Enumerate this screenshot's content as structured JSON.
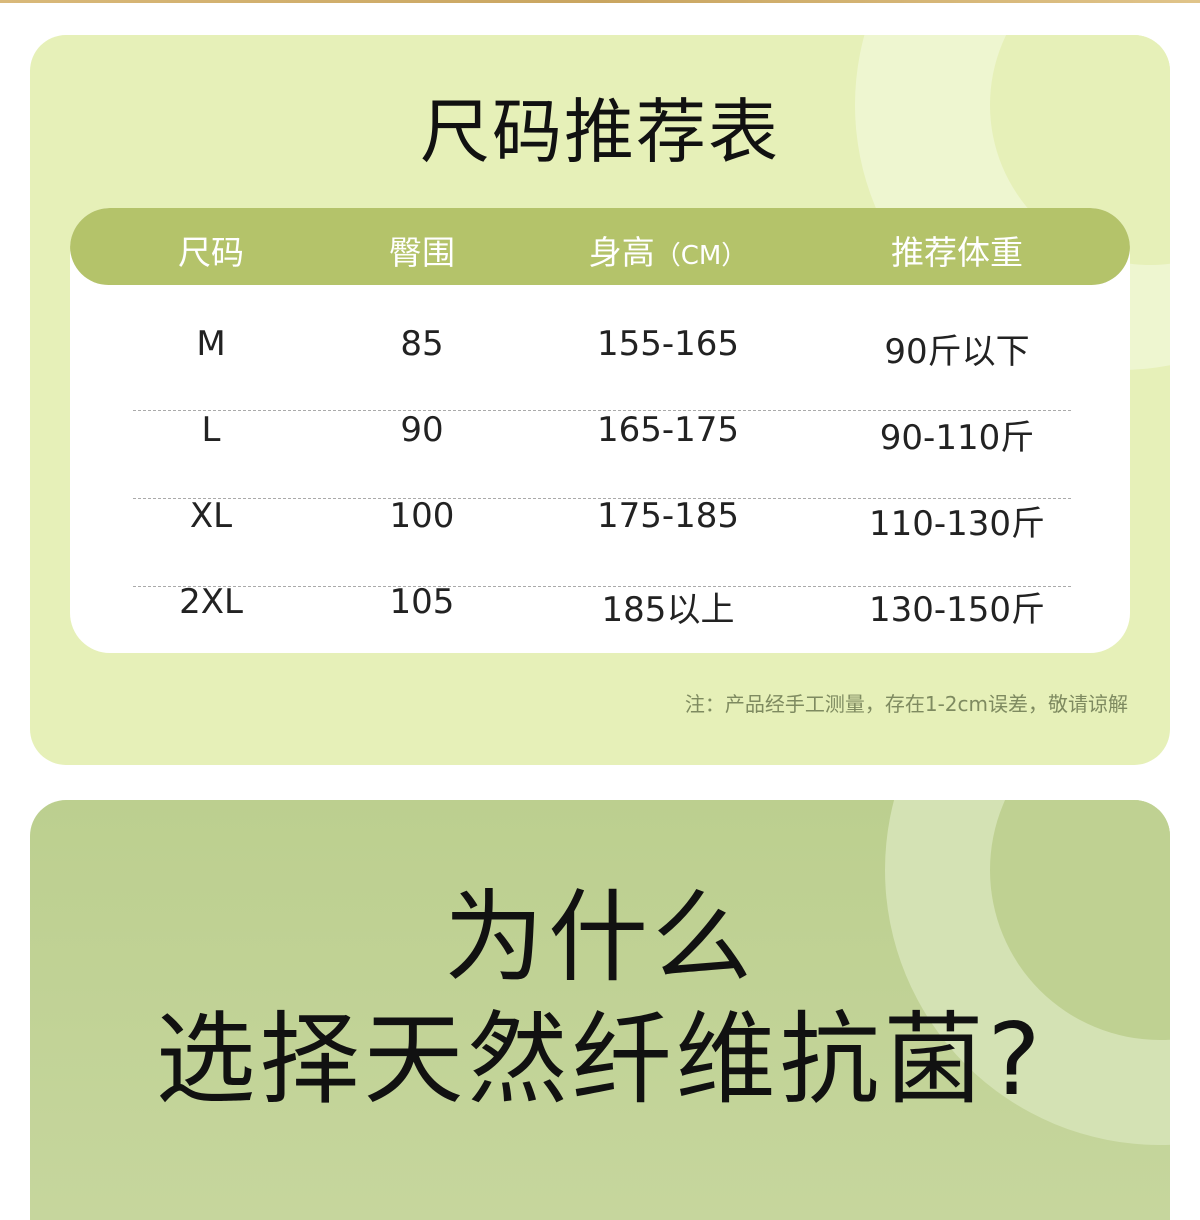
{
  "colors": {
    "card1_bg": "#e6f0b8",
    "header_bg": "#b4c36a",
    "card2_bg": "#bccf8f"
  },
  "size_chart": {
    "title": "尺码推荐表",
    "headers": [
      "尺码",
      "臀围",
      "身高",
      "推荐体重"
    ],
    "height_unit": "（CM）",
    "rows": [
      [
        "M",
        "85",
        "155-165",
        "90斤以下"
      ],
      [
        "L",
        "90",
        "165-175",
        "90-110斤"
      ],
      [
        "XL",
        "100",
        "175-185",
        "110-130斤"
      ],
      [
        "2XL",
        "105",
        "185以上",
        "130-150斤"
      ]
    ],
    "note": "注：产品经手工测量，存在1-2cm误差，敬请谅解"
  },
  "section2": {
    "line1": "为什么",
    "line2": "选择天然纤维抗菌?"
  }
}
